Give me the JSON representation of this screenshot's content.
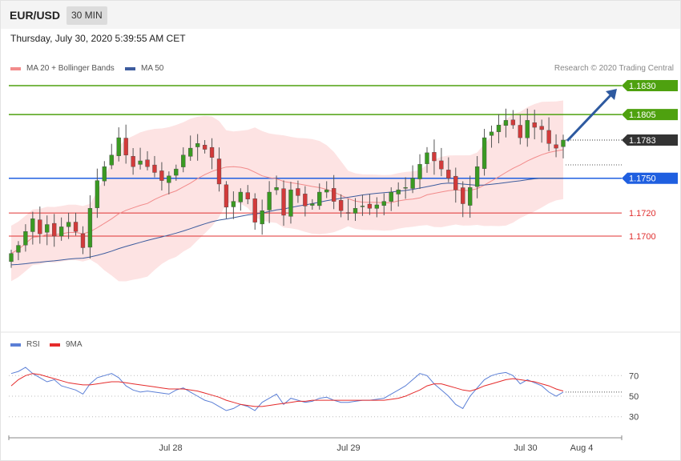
{
  "header": {
    "symbol": "EUR/USD",
    "timeframe": "30 MIN",
    "datetime": "Thursday, July 30, 2020 5:39:55 AM CET",
    "credit": "Research © 2020 Trading Central"
  },
  "legend": [
    {
      "label": "MA 20 + Bollinger Bands",
      "color": "#f28b8b"
    },
    {
      "label": "MA 50",
      "color": "#3d5c9e"
    }
  ],
  "rsi_legend": [
    {
      "label": "RSI",
      "color": "#5b7fd6"
    },
    {
      "label": "9MA",
      "color": "#e52b2b"
    }
  ],
  "levels": [
    {
      "value": "1.1830",
      "kind": "resistance",
      "color": "#4ea10f"
    },
    {
      "value": "1.1805",
      "kind": "resistance",
      "color": "#4ea10f"
    },
    {
      "value": "1.1783",
      "kind": "current",
      "color": "#333333"
    },
    {
      "value": "1.1750",
      "kind": "pivot",
      "color": "#1f5fe0"
    },
    {
      "value": "1.1720",
      "kind": "support",
      "color": "#e03030"
    },
    {
      "value": "1.1700",
      "kind": "support",
      "color": "#e03030"
    }
  ],
  "chart_data": [
    {
      "type": "candlestick",
      "title": "EUR/USD 30 MIN",
      "price_range": [
        1.164,
        1.1835
      ],
      "x_ticks": [
        "Jul 28",
        "Jul 29",
        "Jul 30",
        "Aug 4"
      ],
      "closes": [
        1.1685,
        1.1692,
        1.1704,
        1.1715,
        1.1702,
        1.171,
        1.17,
        1.1708,
        1.1712,
        1.1704,
        1.169,
        1.1724,
        1.1748,
        1.176,
        1.177,
        1.1785,
        1.177,
        1.176,
        1.1765,
        1.176,
        1.1755,
        1.1748,
        1.1752,
        1.1758,
        1.177,
        1.1776,
        1.178,
        1.1775,
        1.1768,
        1.1745,
        1.1725,
        1.173,
        1.1738,
        1.1732,
        1.1712,
        1.1722,
        1.1738,
        1.1742,
        1.1718,
        1.174,
        1.1735,
        1.1726,
        1.1728,
        1.1738,
        1.174,
        1.173,
        1.1722,
        1.172,
        1.1724,
        1.1726,
        1.1724,
        1.1727,
        1.173,
        1.1738,
        1.174,
        1.1742,
        1.175,
        1.1762,
        1.1772,
        1.1765,
        1.1758,
        1.175,
        1.174,
        1.1728,
        1.1742,
        1.176,
        1.1785,
        1.179,
        1.1796,
        1.18,
        1.1796,
        1.1785,
        1.18,
        1.1794,
        1.1792,
        1.178,
        1.1776,
        1.1783
      ],
      "series": [
        {
          "name": "MA 20 + Bollinger Bands",
          "color": "#f28b8b"
        },
        {
          "name": "MA 50",
          "color": "#3d5c9e"
        }
      ]
    },
    {
      "type": "line",
      "title": "RSI",
      "y_ticks": [
        70,
        50,
        30
      ],
      "ylim": [
        15,
        85
      ],
      "series": [
        {
          "name": "RSI",
          "color": "#5b7fd6",
          "values": [
            72,
            74,
            78,
            72,
            68,
            64,
            66,
            60,
            58,
            56,
            52,
            62,
            68,
            70,
            72,
            68,
            60,
            56,
            54,
            55,
            54,
            53,
            52,
            56,
            58,
            54,
            50,
            46,
            44,
            40,
            36,
            38,
            42,
            40,
            36,
            44,
            48,
            52,
            42,
            48,
            46,
            44,
            45,
            48,
            49,
            46,
            44,
            44,
            45,
            46,
            46,
            47,
            48,
            52,
            56,
            60,
            66,
            72,
            70,
            62,
            56,
            50,
            42,
            38,
            50,
            58,
            66,
            70,
            72,
            73,
            70,
            62,
            66,
            63,
            60,
            54,
            50,
            54
          ]
        },
        {
          "name": "9MA",
          "color": "#e52b2b",
          "values": [
            60,
            66,
            70,
            72,
            71,
            69,
            67,
            65,
            63,
            62,
            61,
            61,
            62,
            63,
            64,
            64,
            63,
            62,
            61,
            60,
            59,
            58,
            57,
            57,
            57,
            56,
            55,
            53,
            51,
            49,
            46,
            44,
            42,
            41,
            40,
            40,
            41,
            42,
            43,
            44,
            45,
            45,
            46,
            46,
            46,
            46,
            46,
            46,
            46,
            46,
            46,
            46,
            46,
            47,
            48,
            50,
            53,
            56,
            60,
            62,
            62,
            60,
            58,
            56,
            55,
            57,
            60,
            62,
            64,
            66,
            67,
            66,
            65,
            64,
            62,
            60,
            57,
            55
          ]
        }
      ]
    }
  ]
}
